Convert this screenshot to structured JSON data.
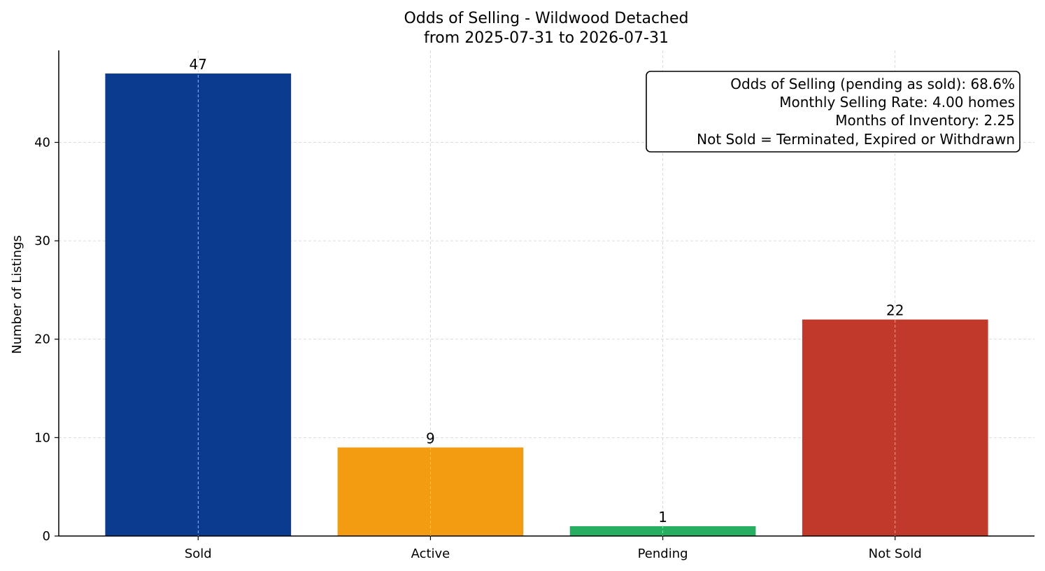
{
  "chart_data": {
    "type": "bar",
    "title": "Odds of Selling - Wildwood Detached",
    "subtitle": "from 2025-07-31 to 2026-07-31",
    "xlabel": "",
    "ylabel": "Number of Listings",
    "categories": [
      "Sold",
      "Active",
      "Pending",
      "Not Sold"
    ],
    "values": [
      47,
      9,
      1,
      22
    ],
    "colors": [
      "#0b3b8f",
      "#f39c12",
      "#27ae60",
      "#c0392b"
    ],
    "ylim": [
      0,
      49.35
    ],
    "yticks": [
      0,
      10,
      20,
      30,
      40
    ],
    "grid": true,
    "info_box": {
      "position": "top-right",
      "lines": [
        "Odds of Selling (pending as sold): 68.6%",
        "Monthly Selling Rate: 4.00 homes",
        "Months of Inventory: 2.25",
        "Not Sold = Terminated, Expired or Withdrawn"
      ]
    }
  }
}
